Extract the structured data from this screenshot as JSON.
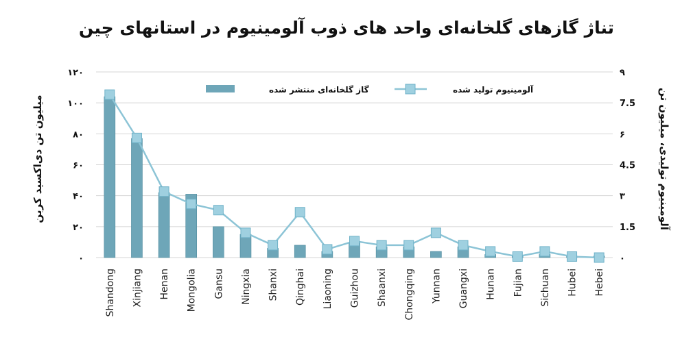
{
  "chart_data": {
    "type": "bar",
    "title": "تناژ گازهای گلخانه‌ای واحد های ذوب آلومینیوم در استانهای چین",
    "categories": [
      "Shandong",
      "Xinjiang",
      "Henan",
      "Mongolia",
      "Gansu",
      "Ningxia",
      "Shanxi",
      "Qinghai",
      "Liaoning",
      "Guizhou",
      "Shaanxi",
      "Chongqing",
      "Yunnan",
      "Guangxi",
      "Hunan",
      "Fujian",
      "Sichuan",
      "Hubei",
      "Hebei"
    ],
    "series": [
      {
        "name": "گاز گلخانه‌ای منتشر شده",
        "type": "bar",
        "axis": "left",
        "values": [
          104,
          77,
          42,
          41,
          20,
          15,
          6,
          8,
          4,
          10,
          7,
          7,
          4,
          7,
          2,
          1,
          2,
          1,
          1
        ]
      },
      {
        "name": "آلومینیوم تولید شده",
        "type": "line",
        "axis": "right",
        "values": [
          7.9,
          5.8,
          3.2,
          2.6,
          2.3,
          1.2,
          0.6,
          2.2,
          0.4,
          0.8,
          0.6,
          0.6,
          1.2,
          0.6,
          0.3,
          0.05,
          0.3,
          0.05,
          0.0
        ]
      }
    ],
    "ylabel_left": "میلیون تن دی‌اکسید کربن",
    "ylabel_right": "آلومینیوم تولیدی، میلیون تن",
    "ylim_left": [
      0,
      120
    ],
    "ylim_right": [
      0,
      9
    ],
    "yticks_left": [
      "٠",
      "٢٠",
      "۴٠",
      "۶٠",
      "٨٠",
      "١٠٠",
      "١٢٠"
    ],
    "yticks_right": [
      "٠",
      "1.5",
      "٣",
      "4.5",
      "۶",
      "7.5",
      "٩"
    ],
    "grid": true,
    "legend_position": "top",
    "colors": {
      "bar": "#6ea6b8",
      "bar_edge": "#4f8b9e",
      "line": "#8cc4d6",
      "marker": "#9fd0e0",
      "grid": "#d4d4d4"
    }
  }
}
